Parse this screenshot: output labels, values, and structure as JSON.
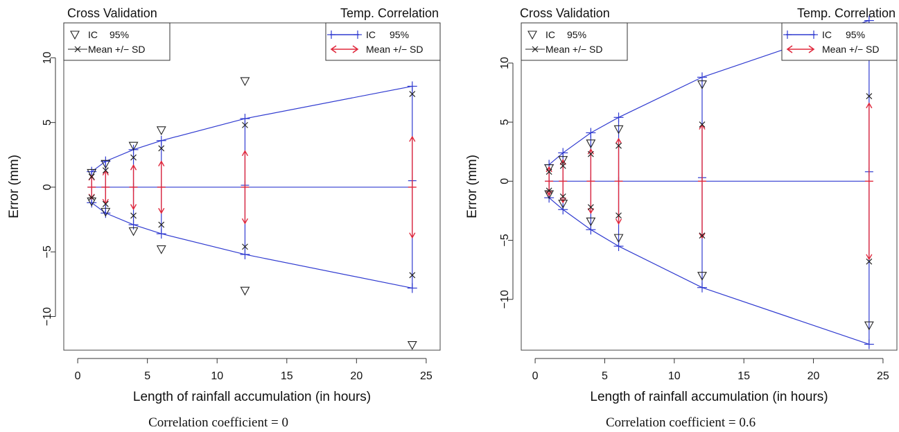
{
  "chart_data": [
    {
      "type": "scatter",
      "caption": "Correlation coefficient = 0",
      "left_header": "Cross Validation",
      "right_header": "Temp. Correlation",
      "xlabel": "Length of rainfall accumulation (in hours)",
      "ylabel": "Error (mm)",
      "xlim": [
        -1,
        26
      ],
      "ylim": [
        -12.6,
        12.7
      ],
      "xticks": [
        0,
        5,
        10,
        15,
        20,
        25
      ],
      "yticks": [
        -10,
        -5,
        0,
        5,
        10
      ],
      "legend_left": {
        "ic_label": "IC",
        "ic_pct": "95%",
        "mean_label": "Mean +/− SD"
      },
      "legend_right": {
        "ic_label": "IC",
        "ic_pct": "95%",
        "mean_label": "Mean +/− SD"
      },
      "x": [
        1,
        2,
        4,
        6,
        12,
        24
      ],
      "cv_ic95_upper": [
        1.1,
        1.8,
        3.2,
        4.4,
        8.2,
        11.8
      ],
      "cv_ic95_lower": [
        -1.1,
        -1.9,
        -3.4,
        -4.8,
        -8.0,
        -12.2
      ],
      "cv_mean_plus_sd": [
        0.8,
        1.3,
        2.3,
        3.0,
        4.8,
        7.2
      ],
      "cv_mean_minus_sd": [
        -0.8,
        -1.3,
        -2.2,
        -2.9,
        -4.6,
        -6.8
      ],
      "tc_ic95_upper": [
        1.2,
        2.0,
        2.9,
        3.6,
        5.3,
        7.8
      ],
      "tc_ic95_lower": [
        -1.2,
        -2.0,
        -2.9,
        -3.6,
        -5.2,
        -7.8
      ],
      "tc_mean_center_marks": [
        0.0,
        0.0,
        0.0,
        0.0,
        0.15,
        0.5
      ],
      "tc_mean_plus_sd": [
        0.9,
        1.3,
        1.7,
        2.0,
        2.8,
        3.9
      ],
      "tc_mean_minus_sd": [
        -0.9,
        -1.3,
        -1.7,
        -2.0,
        -2.8,
        -3.9
      ],
      "colors": {
        "cv": "#222222",
        "ic": "#2f3ad0",
        "sd": "#e0283c",
        "frame": "#444444"
      }
    },
    {
      "type": "scatter",
      "caption": "Correlation coefficient = 0.6",
      "left_header": "Cross Validation",
      "right_header": "Temp. Correlation",
      "xlabel": "Length of rainfall accumulation (in hours)",
      "ylabel": "Error (mm)",
      "xlim": [
        -1,
        26
      ],
      "ylim": [
        -14.3,
        13.4
      ],
      "xticks": [
        0,
        5,
        10,
        15,
        20,
        25
      ],
      "yticks": [
        -10,
        -5,
        0,
        5,
        10
      ],
      "legend_left": {
        "ic_label": "IC",
        "ic_pct": "95%",
        "mean_label": "Mean +/− SD"
      },
      "legend_right": {
        "ic_label": "IC",
        "ic_pct": "95%",
        "mean_label": "Mean +/− SD"
      },
      "x": [
        1,
        2,
        4,
        6,
        12,
        24
      ],
      "cv_ic95_upper": [
        1.1,
        1.8,
        3.2,
        4.4,
        8.2,
        11.8
      ],
      "cv_ic95_lower": [
        -1.1,
        -1.9,
        -3.4,
        -4.8,
        -8.0,
        -12.2
      ],
      "cv_mean_plus_sd": [
        0.8,
        1.3,
        2.3,
        3.0,
        4.8,
        7.2
      ],
      "cv_mean_minus_sd": [
        -0.8,
        -1.3,
        -2.2,
        -2.9,
        -4.6,
        -6.8
      ],
      "tc_ic95_upper": [
        1.4,
        2.4,
        4.1,
        5.4,
        8.8,
        13.6
      ],
      "tc_ic95_lower": [
        -1.4,
        -2.4,
        -4.1,
        -5.5,
        -9.0,
        -13.8
      ],
      "tc_mean_center_marks": [
        0.0,
        0.0,
        0.0,
        0.0,
        0.3,
        0.8
      ],
      "tc_mean_plus_sd": [
        1.2,
        1.8,
        2.7,
        3.6,
        4.8,
        6.6
      ],
      "tc_mean_minus_sd": [
        -1.2,
        -1.8,
        -2.7,
        -3.6,
        -4.8,
        -6.6
      ],
      "colors": {
        "cv": "#222222",
        "ic": "#2f3ad0",
        "sd": "#e0283c",
        "frame": "#444444"
      }
    }
  ]
}
